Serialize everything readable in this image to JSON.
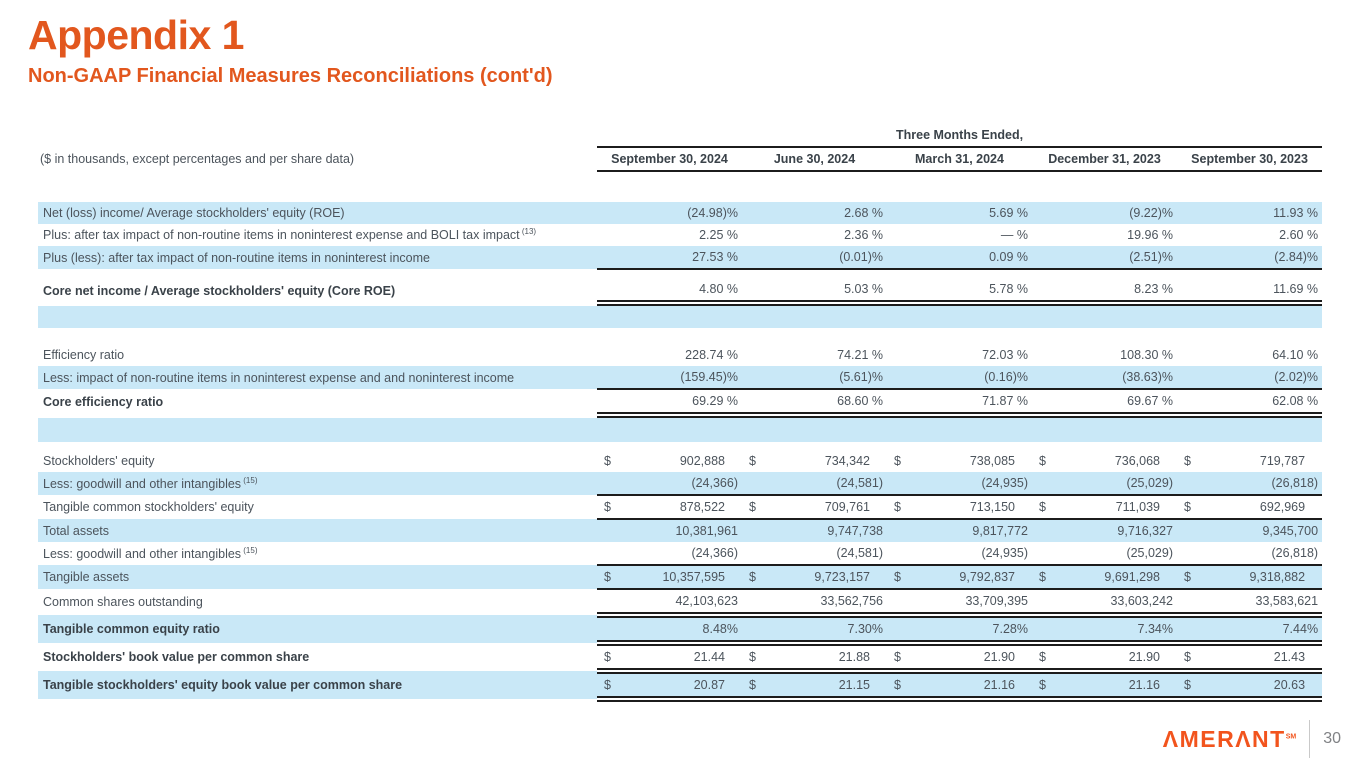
{
  "page": {
    "title": "Appendix 1",
    "subtitle": "Non-GAAP Financial Measures Reconciliations (cont'd)",
    "accent_color": "#E2571E",
    "row_highlight_color": "#C9E8F7"
  },
  "footer": {
    "brand": "AMERANT",
    "brand_display": "ΛMERΛNT",
    "brand_mark": "SM",
    "page_number": "30"
  },
  "table": {
    "units_note": "($ in thousands, except percentages and per share data)",
    "span_header": "Three Months Ended,",
    "columns": [
      "September 30, 2024",
      "June 30, 2024",
      "March 31, 2024",
      "December 31, 2023",
      "September 30, 2023"
    ],
    "rows": [
      {
        "label": "Net (loss) income/ Average stockholders' equity (ROE)",
        "bg": "blue",
        "dollar": false,
        "underline": "none",
        "values": [
          "(24.98)%",
          "2.68 %",
          "5.69 %",
          "(9.22)%",
          "11.93 %"
        ]
      },
      {
        "label": "Plus: after tax impact of non-routine items in noninterest expense and BOLI tax impact",
        "sup": "(13)",
        "bg": "white",
        "dollar": false,
        "underline": "none",
        "values": [
          "2.25 %",
          "2.36 %",
          "— %",
          "19.96 %",
          "2.60 %"
        ]
      },
      {
        "label": "Plus (less): after tax impact of non-routine items in noninterest income",
        "bg": "blue",
        "dollar": false,
        "underline": "single",
        "values": [
          "27.53 %",
          "(0.01)%",
          "0.09 %",
          "(2.51)%",
          "(2.84)%"
        ]
      },
      {
        "type": "gap",
        "h": 8
      },
      {
        "label": "Core net income / Average stockholders' equity (Core ROE)",
        "bold": true,
        "bg": "white",
        "dollar": false,
        "underline": "double",
        "values": [
          "4.80 %",
          "5.03 %",
          "5.78 %",
          "8.23 %",
          "11.69 %"
        ]
      },
      {
        "type": "spacer",
        "h": 22
      },
      {
        "type": "gap",
        "h": 16
      },
      {
        "label": "Efficiency ratio",
        "bg": "white",
        "dollar": false,
        "underline": "none",
        "values": [
          "228.74 %",
          "74.21 %",
          "72.03 %",
          "108.30 %",
          "64.10 %"
        ]
      },
      {
        "label": "Less: impact of non-routine items in noninterest expense and and noninterest income",
        "bg": "blue",
        "dollar": false,
        "underline": "single",
        "values": [
          "(159.45)%",
          "(5.61)%",
          "(0.16)%",
          "(38.63)%",
          "(2.02)%"
        ]
      },
      {
        "label": "Core efficiency ratio",
        "bold": true,
        "bg": "white",
        "dollar": false,
        "underline": "double",
        "values": [
          "69.29 %",
          "68.60 %",
          "71.87 %",
          "69.67 %",
          "62.08 %"
        ]
      },
      {
        "type": "spacer",
        "h": 24
      },
      {
        "type": "gap",
        "h": 8
      },
      {
        "label": "Stockholders' equity",
        "bg": "white",
        "dollar": true,
        "underline": "none",
        "values": [
          "902,888",
          "734,342",
          "738,085",
          "736,068",
          "719,787"
        ]
      },
      {
        "label": "Less: goodwill and other intangibles",
        "sup": "(15)",
        "bg": "blue",
        "dollar": false,
        "underline": "single",
        "values": [
          "(24,366)",
          "(24,581)",
          "(24,935)",
          "(25,029)",
          "(26,818)"
        ]
      },
      {
        "label": "Tangible common stockholders' equity",
        "bg": "white",
        "dollar": true,
        "underline": "single",
        "values": [
          "878,522",
          "709,761",
          "713,150",
          "711,039",
          "692,969"
        ]
      },
      {
        "label": "Total assets",
        "bg": "blue",
        "dollar": false,
        "underline": "none",
        "values": [
          "10,381,961",
          "9,747,738",
          "9,817,772",
          "9,716,327",
          "9,345,700"
        ]
      },
      {
        "label": "Less: goodwill and other intangibles",
        "sup": "(15)",
        "bg": "white",
        "dollar": false,
        "underline": "single",
        "values": [
          "(24,366)",
          "(24,581)",
          "(24,935)",
          "(25,029)",
          "(26,818)"
        ]
      },
      {
        "label": "Tangible assets",
        "bg": "blue",
        "dollar": true,
        "underline": "single",
        "values": [
          "10,357,595",
          "9,723,157",
          "9,792,837",
          "9,691,298",
          "9,318,882"
        ]
      },
      {
        "label": "Common shares outstanding",
        "bg": "white",
        "dollar": false,
        "underline": "double",
        "values": [
          "42,103,623",
          "33,562,756",
          "33,709,395",
          "33,603,242",
          "33,583,621"
        ]
      },
      {
        "label": "Tangible common equity ratio",
        "bold": true,
        "bg": "blue",
        "dollar": false,
        "underline": "double",
        "values": [
          "8.48%",
          "7.30%",
          "7.28%",
          "7.34%",
          "7.44%"
        ]
      },
      {
        "label": "Stockholders' book value per common share",
        "bold": true,
        "bg": "white",
        "dollar": true,
        "underline": "double",
        "values": [
          "21.44",
          "21.88",
          "21.90",
          "21.90",
          "21.43"
        ]
      },
      {
        "label": "Tangible stockholders' equity book value per common share",
        "bold": true,
        "bg": "blue",
        "dollar": true,
        "underline": "double",
        "values": [
          "20.87",
          "21.15",
          "21.16",
          "21.16",
          "20.63"
        ]
      }
    ]
  }
}
